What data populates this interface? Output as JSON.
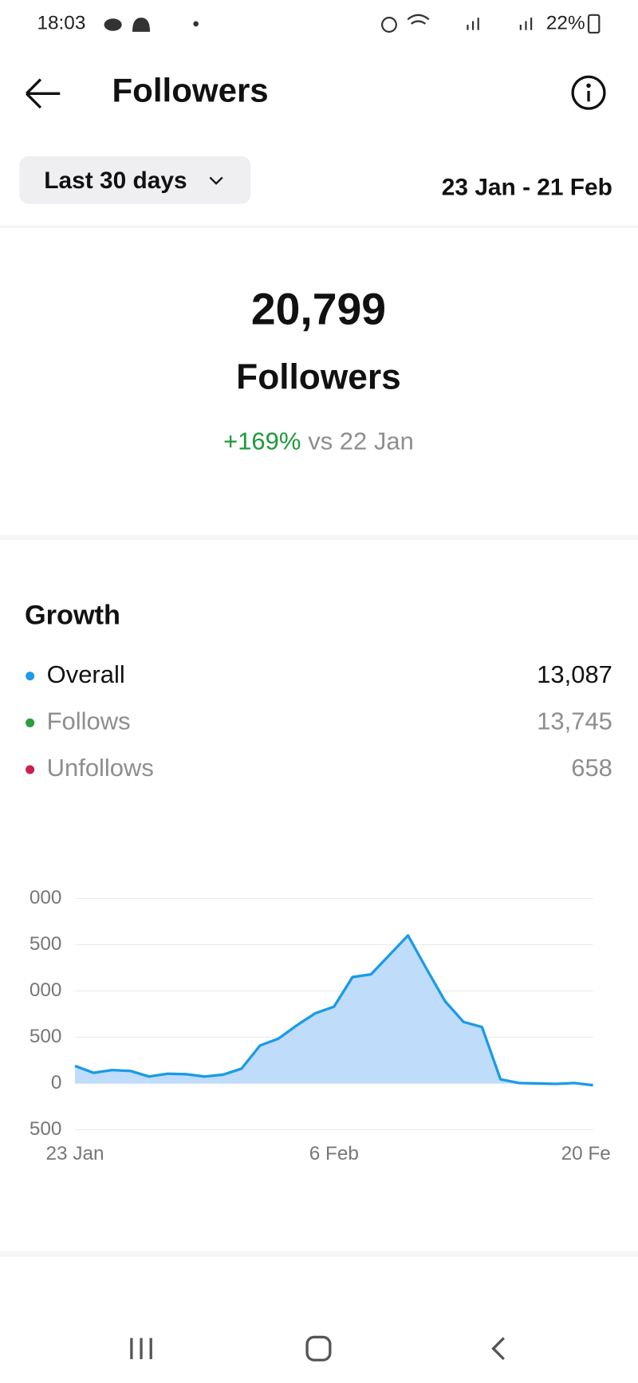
{
  "status_bar": {
    "time": "18:03",
    "battery": "22%"
  },
  "header": {
    "title": "Followers"
  },
  "filter": {
    "period": "Last 30 days",
    "date_range": "23 Jan - 21 Feb"
  },
  "summary": {
    "count": "20,799",
    "label": "Followers",
    "change": "+169%",
    "comparison": "vs 22 Jan"
  },
  "growth": {
    "title": "Growth",
    "rows": [
      {
        "label": "Overall",
        "value": "13,087"
      },
      {
        "label": "Follows",
        "value": "13,745"
      },
      {
        "label": "Unfollows",
        "value": "658"
      }
    ]
  },
  "chart_data": {
    "type": "area",
    "categories": [
      "23 Jan",
      null,
      null,
      null,
      null,
      null,
      null,
      null,
      null,
      null,
      null,
      null,
      null,
      null,
      "6 Feb",
      null,
      null,
      null,
      null,
      null,
      null,
      null,
      null,
      null,
      null,
      null,
      null,
      null,
      "20 Fe"
    ],
    "values": [
      190,
      115,
      145,
      135,
      75,
      105,
      100,
      75,
      95,
      160,
      410,
      485,
      630,
      760,
      830,
      1150,
      1180,
      1390,
      1600,
      1240,
      890,
      665,
      610,
      45,
      5,
      0,
      -5,
      5,
      -20
    ],
    "color": "#1a9be6",
    "fill": "#bfdcfb",
    "ylim": [
      -500,
      2000
    ],
    "yticks": [
      {
        "value": -500,
        "label": "500"
      },
      0,
      500,
      {
        "value": 1000,
        "label": "000"
      },
      {
        "value": 1500,
        "label": "500"
      },
      {
        "value": 2000,
        "label": "000"
      }
    ],
    "grid": true
  }
}
